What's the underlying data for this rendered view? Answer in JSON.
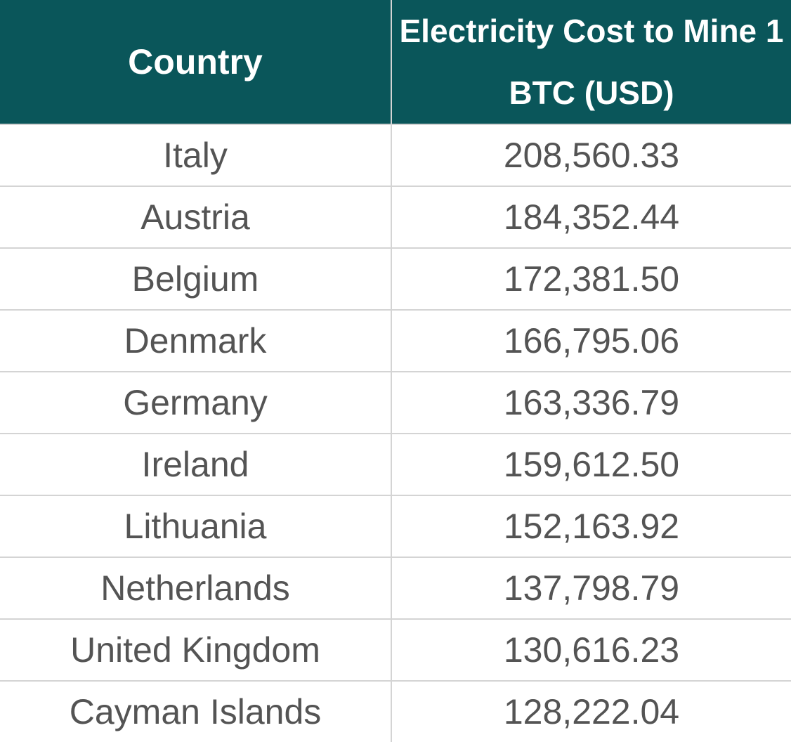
{
  "table": {
    "headers": {
      "country": "Country",
      "cost": "Electricity Cost to Mine 1 BTC (USD)"
    },
    "rows": [
      {
        "country": "Italy",
        "cost": "208,560.33"
      },
      {
        "country": "Austria",
        "cost": "184,352.44"
      },
      {
        "country": "Belgium",
        "cost": "172,381.50"
      },
      {
        "country": "Denmark",
        "cost": "166,795.06"
      },
      {
        "country": "Germany",
        "cost": "163,336.79"
      },
      {
        "country": "Ireland",
        "cost": "159,612.50"
      },
      {
        "country": "Lithuania",
        "cost": "152,163.92"
      },
      {
        "country": "Netherlands",
        "cost": "137,798.79"
      },
      {
        "country": "United Kingdom",
        "cost": "130,616.23"
      },
      {
        "country": "Cayman Islands",
        "cost": "128,222.04"
      }
    ]
  },
  "colors": {
    "header_bg": "#0a565a",
    "header_text": "#ffffff",
    "body_text": "#545454",
    "grid": "#d4d4d4"
  }
}
